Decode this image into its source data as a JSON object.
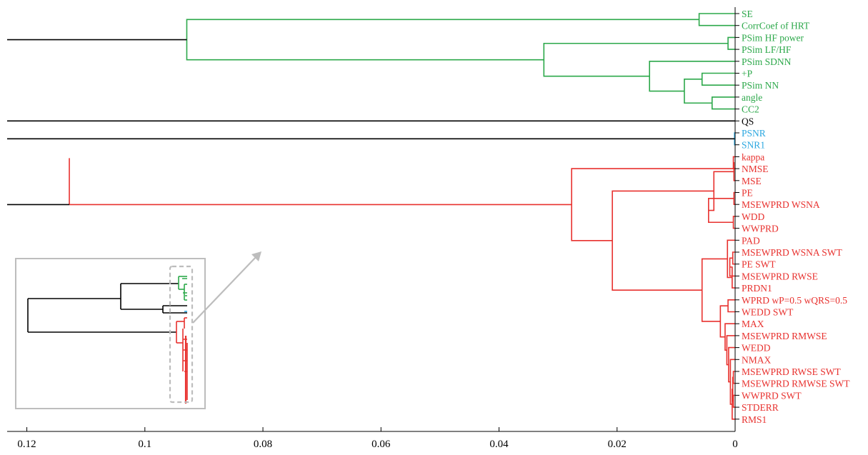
{
  "colors": {
    "green": "#2ca84a",
    "black": "#000000",
    "blue": "#2ba7e0",
    "red": "#e8312e",
    "inset_frame": "#bdbdbd",
    "inset_arrow": "#bdbdbd"
  },
  "chart_data": {
    "type": "dendrogram",
    "orientation": "horizontal, root on left, leaves on right",
    "xlim": [
      0.124,
      0
    ],
    "xticks": [
      0.12,
      0.1,
      0.08,
      0.06,
      0.04,
      0.02,
      0
    ],
    "xtick_labels": [
      "0.12",
      "0.1",
      "0.08",
      "0.06",
      "0.04",
      "0.02",
      "0"
    ],
    "leaves": [
      {
        "label": "SE",
        "cluster": "green"
      },
      {
        "label": "CorrCoef of HRT",
        "cluster": "green"
      },
      {
        "label": "PSim HF power",
        "cluster": "green"
      },
      {
        "label": "PSim LF/HF",
        "cluster": "green"
      },
      {
        "label": "PSim SDNN",
        "cluster": "green"
      },
      {
        "label": "+P",
        "cluster": "green"
      },
      {
        "label": "PSim NN",
        "cluster": "green"
      },
      {
        "label": "angle",
        "cluster": "green"
      },
      {
        "label": "CC2",
        "cluster": "green"
      },
      {
        "label": "QS",
        "cluster": "black"
      },
      {
        "label": "PSNR",
        "cluster": "blue"
      },
      {
        "label": "SNR1",
        "cluster": "blue"
      },
      {
        "label": "kappa",
        "cluster": "red"
      },
      {
        "label": "NMSE",
        "cluster": "red"
      },
      {
        "label": "MSE",
        "cluster": "red"
      },
      {
        "label": "PE",
        "cluster": "red"
      },
      {
        "label": "MSEWPRD WSNA",
        "cluster": "red"
      },
      {
        "label": "WDD",
        "cluster": "red"
      },
      {
        "label": "WWPRD",
        "cluster": "red"
      },
      {
        "label": "PAD",
        "cluster": "red"
      },
      {
        "label": "MSEWPRD WSNA SWT",
        "cluster": "red"
      },
      {
        "label": "PE SWT",
        "cluster": "red"
      },
      {
        "label": "MSEWPRD RWSE",
        "cluster": "red"
      },
      {
        "label": "PRDN1",
        "cluster": "red"
      },
      {
        "label": "WPRD wP=0.5 wQRS=0.5",
        "cluster": "red"
      },
      {
        "label": "WEDD SWT",
        "cluster": "red"
      },
      {
        "label": "MAX",
        "cluster": "red"
      },
      {
        "label": "MSEWPRD RMWSE",
        "cluster": "red"
      },
      {
        "label": "WEDD",
        "cluster": "red"
      },
      {
        "label": "NMAX",
        "cluster": "red"
      },
      {
        "label": "MSEWPRD RWSE SWT",
        "cluster": "red"
      },
      {
        "label": "MSEWPRD RMWSE SWT",
        "cluster": "red"
      },
      {
        "label": "WWPRD SWT",
        "cluster": "red"
      },
      {
        "label": "STDERR",
        "cluster": "red"
      },
      {
        "label": "RMS1",
        "cluster": "red"
      }
    ],
    "merges": [
      {
        "a": "SE",
        "b": "CorrCoef of HRT",
        "height": 0.0061,
        "color": "green"
      },
      {
        "a": "PSim HF power",
        "b": "PSim LF/HF",
        "height": 0.0012,
        "color": "green"
      },
      {
        "a": "angle",
        "b": "CC2",
        "height": 0.0039,
        "color": "green"
      },
      {
        "a": "+P",
        "b": "PSim NN",
        "height": 0.0056,
        "color": "green"
      },
      {
        "a": "[+P, PSim NN]",
        "b": "[angle, CC2]",
        "height": 0.0086,
        "color": "green"
      },
      {
        "a": "PSim SDNN",
        "b": "[+P, PSim NN, angle, CC2]",
        "height": 0.0145,
        "color": "green"
      },
      {
        "a": "[PSim HF power, PSim LF/HF]",
        "b": "[PSim SDNN, +P, PSim NN, angle, CC2]",
        "height": 0.0324,
        "color": "green"
      },
      {
        "a": "[SE, CorrCoef of HRT]",
        "b": "[PSim HF power .. CC2]",
        "height": 0.0929,
        "color": "green"
      },
      {
        "a": "PSNR",
        "b": "SNR1",
        "height": 0.0001,
        "color": "blue"
      },
      {
        "a": "kappa",
        "b": "NMSE",
        "height": 0.0003,
        "color": "red"
      },
      {
        "a": "[kappa, NMSE]",
        "b": "MSE",
        "height": 0.0002,
        "color": "red"
      },
      {
        "a": "PE",
        "b": "MSEWPRD WSNA",
        "height": 0.0002,
        "color": "red"
      },
      {
        "a": "WDD",
        "b": "WWPRD",
        "height": 0.0003,
        "color": "red"
      },
      {
        "a": "[PE, MSEWPRD WSNA]",
        "b": "[WDD, WWPRD]",
        "height": 0.0045,
        "color": "red"
      },
      {
        "a": "[kappa, NMSE, MSE]",
        "b": "[PE, MSEWPRD WSNA, WDD, WWPRD]",
        "height": 0.0036,
        "color": "red"
      },
      {
        "a": "MSEWPRD WSNA SWT",
        "b": "PE SWT",
        "height": 0.0004,
        "color": "red"
      },
      {
        "a": "[MSEWPRD WSNA SWT, PE SWT]",
        "b": "MSEWPRD RWSE",
        "height": 0.0009,
        "color": "red"
      },
      {
        "a": "[MSEWPRD WSNA SWT, PE SWT, MSEWPRD RWSE]",
        "b": "PRDN1",
        "height": 0.0005,
        "color": "red"
      },
      {
        "a": "PAD",
        "b": "[MSEWPRD WSNA SWT .. PRDN1]",
        "height": 0.0013,
        "color": "red"
      },
      {
        "a": "WPRD wP=0.5 wQRS=0.5",
        "b": "WEDD SWT",
        "height": 0.0012,
        "color": "red"
      },
      {
        "a": "MSEWPRD RWSE SWT",
        "b": "MSEWPRD RMWSE SWT",
        "height": 0.0003,
        "color": "red"
      },
      {
        "a": "WWPRD SWT",
        "b": "STDERR",
        "height": 0.0003,
        "color": "red"
      },
      {
        "a": "[MSEWPRD RWSE SWT, MSEWPRD RMWSE SWT]",
        "b": "[WWPRD SWT, STDERR]",
        "height": 0.0004,
        "color": "red"
      },
      {
        "a": "[MSEWPRD RWSE SWT .. STDERR]",
        "b": "RMS1",
        "height": 0.0005,
        "color": "red"
      },
      {
        "a": "NMAX",
        "b": "[MSEWPRD RWSE SWT .. RMS1]",
        "height": 0.0008,
        "color": "red"
      },
      {
        "a": "WEDD",
        "b": "[NMAX .. RMS1]",
        "height": 0.0011,
        "color": "red"
      },
      {
        "a": "MSEWPRD RMWSE",
        "b": "[WEDD .. RMS1]",
        "height": 0.0014,
        "color": "red"
      },
      {
        "a": "MAX",
        "b": "[MSEWPRD RMWSE .. RMS1]",
        "height": 0.0017,
        "color": "red"
      },
      {
        "a": "[WPRD wP=0.5 wQRS=0.5, WEDD SWT]",
        "b": "[MAX .. RMS1]",
        "height": 0.0025,
        "color": "red"
      },
      {
        "a": "[PAD .. PRDN1]",
        "b": "[WPRD wP=0.5 wQRS=0.5 .. RMS1]",
        "height": 0.0056,
        "color": "red"
      },
      {
        "a": "[kappa .. WWPRD]",
        "b": "[PAD .. RMS1]",
        "height": 0.0208,
        "color": "red"
      },
      {
        "a": "[kappa .. WWPRD, PAD .. RMS1]",
        "b": "(collapsed)",
        "height": 0.0277,
        "color": "red"
      },
      {
        "a": "[kappa .. RMS1]",
        "b": "",
        "height": 0.1128,
        "color": "red"
      }
    ],
    "root_links": [
      {
        "cluster": "green",
        "height": 0.0929
      },
      {
        "cluster": "black",
        "leaf": "QS"
      },
      {
        "cluster": "blue",
        "height": 0.0001
      },
      {
        "cluster": "red",
        "height": 0.1128
      }
    ],
    "grid": false,
    "legend": "none",
    "inset": {
      "description": "full dendrogram overview with dashed box highlighting the zoomed region",
      "placement": "bottom-left"
    }
  }
}
